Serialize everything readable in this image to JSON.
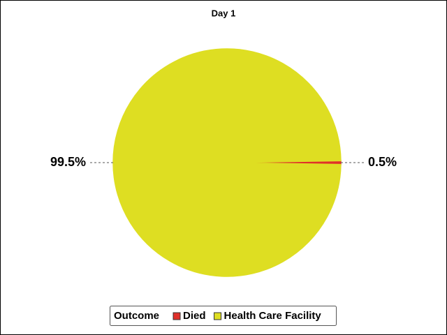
{
  "chart_data": {
    "type": "pie",
    "title": "Day 1",
    "legend_title": "Outcome",
    "categories": [
      "Died",
      "Health Care Facility"
    ],
    "values": [
      0.5,
      99.5
    ],
    "value_labels": [
      "0.5%",
      "99.5%"
    ],
    "colors": [
      "#e0302a",
      "#dede22"
    ]
  }
}
